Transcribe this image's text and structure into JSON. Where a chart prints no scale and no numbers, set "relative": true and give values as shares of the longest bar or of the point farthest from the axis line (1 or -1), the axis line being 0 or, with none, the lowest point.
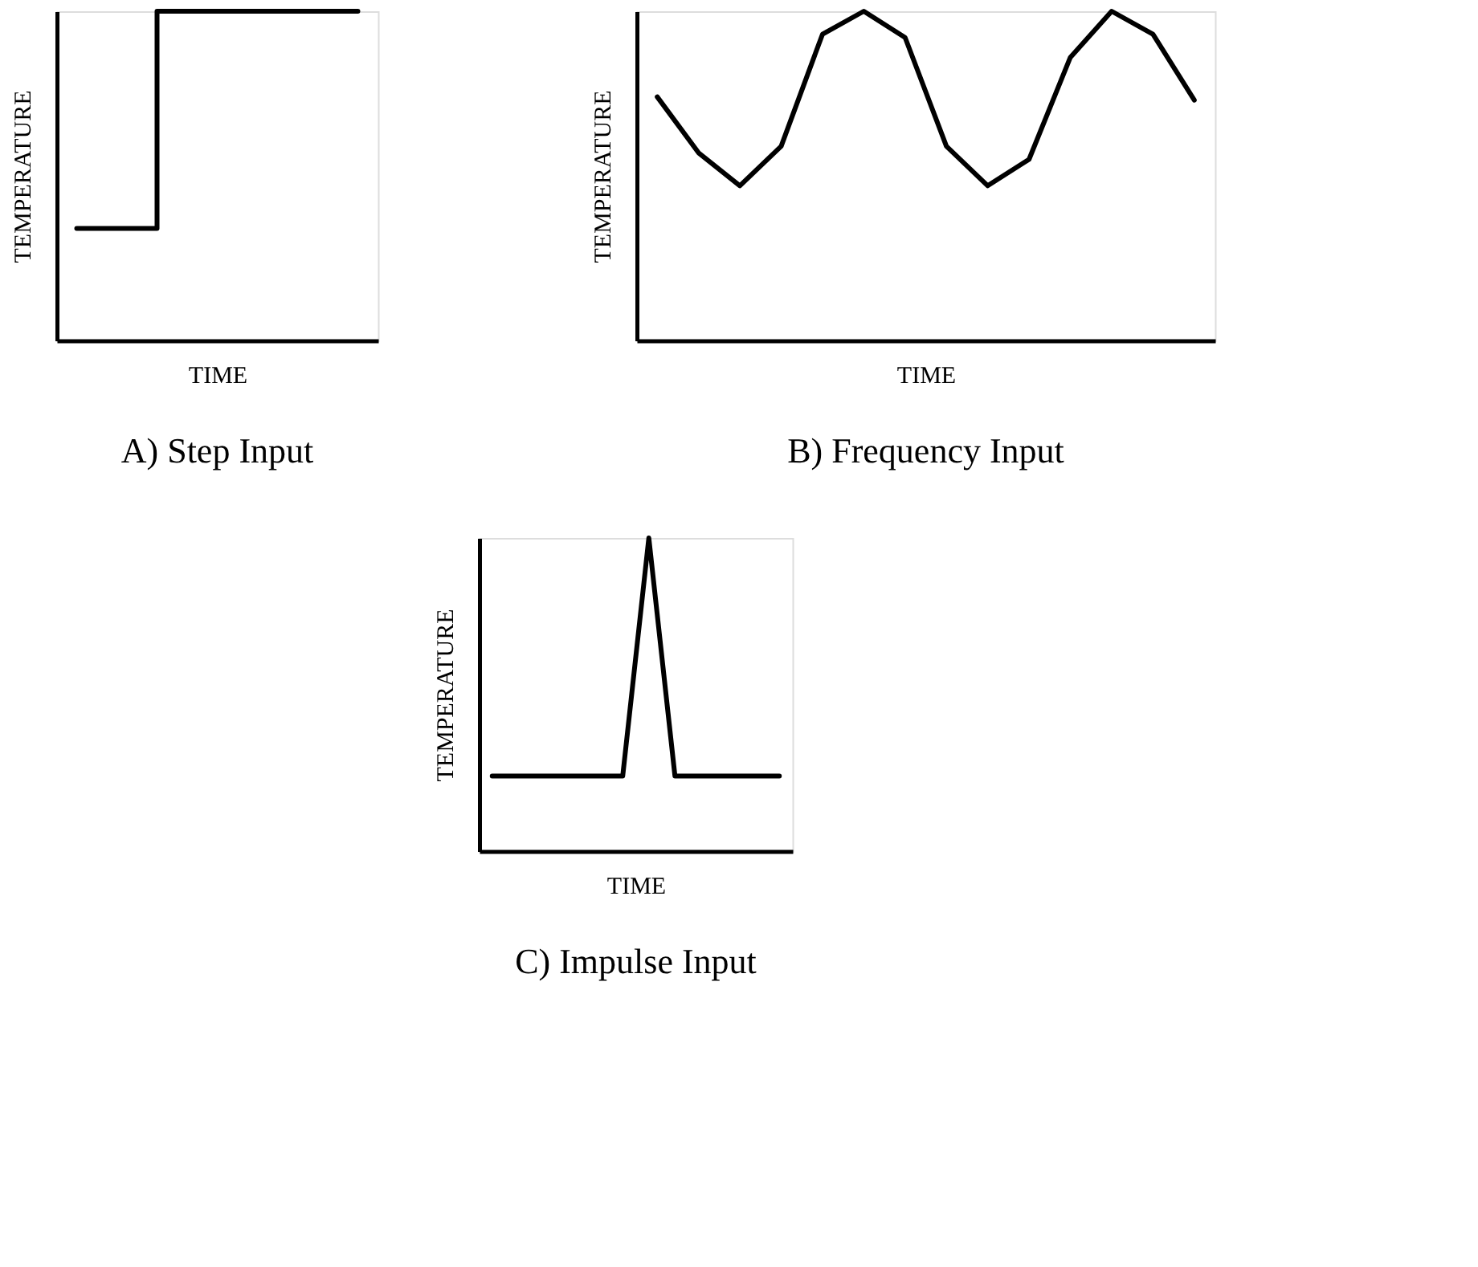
{
  "chart_data": [
    {
      "type": "step",
      "title": "A) Step Input",
      "xlabel": "TIME",
      "ylabel": "TEMPERATURE",
      "relative": true,
      "categories": [
        null,
        null,
        null,
        null,
        null,
        null,
        null,
        null
      ],
      "series": [
        {
          "color": "#000000",
          "values": [
            0.34,
            0.34,
            1,
            1,
            1,
            1,
            1,
            1
          ]
        }
      ]
    },
    {
      "type": "line",
      "title": "B) Frequency Input",
      "xlabel": "TIME",
      "ylabel": "TEMPERATURE",
      "relative": true,
      "categories": [
        null,
        null,
        null,
        null,
        null,
        null,
        null,
        null,
        null,
        null,
        null,
        null,
        null,
        null
      ],
      "series": [
        {
          "color": "#000000",
          "values": [
            0.74,
            0.57,
            0.47,
            0.59,
            0.93,
            1,
            0.92,
            0.59,
            0.47,
            0.55,
            0.86,
            1,
            0.93,
            0.73
          ]
        }
      ]
    },
    {
      "type": "line",
      "title": "C) Impulse Input",
      "xlabel": "TIME",
      "ylabel": "TEMPERATURE",
      "relative": true,
      "categories": [
        null,
        null,
        null,
        null,
        null,
        null,
        null,
        null,
        null,
        null,
        null,
        null
      ],
      "series": [
        {
          "color": "#000000",
          "values": [
            0.24,
            0.24,
            0.24,
            0.24,
            0.24,
            0.24,
            1,
            0.24,
            0.24,
            0.24,
            0.24,
            0.24
          ]
        }
      ]
    }
  ]
}
